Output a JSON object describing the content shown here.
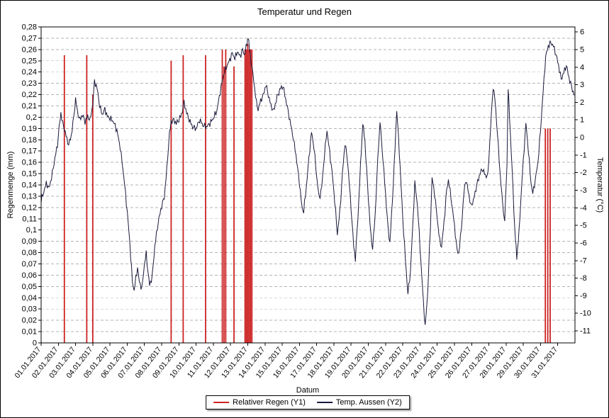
{
  "title": "Temperatur und Regen",
  "axes": {
    "y_left_label": "Regenmenge (mm)",
    "y_right_label": "Temperatur (°C)",
    "x_label": "Datum"
  },
  "legend": {
    "items": [
      {
        "label": "Relativer Regen (Y1)",
        "color": "#cc2222"
      },
      {
        "label": "Temp. Aussen (Y2)",
        "color": "#1a1a3c"
      }
    ]
  },
  "chart_data": {
    "type": "line",
    "title": "Temperatur und Regen",
    "x_axis": {
      "label": "Datum",
      "ticks": [
        "01.01.2017",
        "02.01.2017",
        "03.01.2017",
        "04.01.2017",
        "05.01.2017",
        "06.01.2017",
        "07.01.2017",
        "08.01.2017",
        "09.01.2017",
        "10.01.2017",
        "11.01.2017",
        "12.01.2017",
        "13.01.2017",
        "14.01.2017",
        "15.01.2017",
        "16.01.2017",
        "17.01.2017",
        "18.01.2017",
        "19.01.2017",
        "20.01.2017",
        "21.01.2017",
        "22.01.2017",
        "23.01.2017",
        "24.01.2017",
        "25.01.2017",
        "26.01.2017",
        "27.01.2017",
        "28.01.2017",
        "29.01.2017",
        "30.01.2017",
        "31.01.2017"
      ]
    },
    "rain_axis": {
      "label": "Regenmenge (mm)",
      "min": 0,
      "max": 0.28,
      "tick_step": 0.01,
      "ticks": [
        "0",
        "0,01",
        "0,02",
        "0,03",
        "0,04",
        "0,05",
        "0,06",
        "0,07",
        "0,08",
        "0,09",
        "0,1",
        "0,11",
        "0,12",
        "0,13",
        "0,14",
        "0,15",
        "0,16",
        "0,17",
        "0,18",
        "0,19",
        "0,2",
        "0,21",
        "0,22",
        "0,23",
        "0,24",
        "0,25",
        "0,26",
        "0,27",
        "0,28"
      ]
    },
    "temp_axis": {
      "label": "Temperatur (°C)",
      "min": -11,
      "max": 6,
      "tick_step": 1,
      "ticks": [
        "6",
        "5",
        "4",
        "3",
        "2",
        "1",
        "0",
        "-1",
        "-2",
        "-3",
        "-4",
        "-5",
        "-6",
        "-7",
        "-8",
        "-9",
        "-10",
        "-11"
      ]
    },
    "colors": {
      "rain": "#cc2222",
      "temperature": "#1a1a3c",
      "grid": "#b3b3b3"
    },
    "grid": "horizontal-dashed",
    "legend_position": "bottom-center",
    "series": [
      {
        "name": "Relativer Regen (Y1)",
        "render": "vertical-lines",
        "unit": "mm",
        "points": [
          [
            2.35,
            0.255
          ],
          [
            3.65,
            0.255
          ],
          [
            4.0,
            0.22
          ],
          [
            8.55,
            0.25
          ],
          [
            9.25,
            0.255
          ],
          [
            10.55,
            0.255
          ],
          [
            11.52,
            0.26
          ],
          [
            11.62,
            0.245
          ],
          [
            11.72,
            0.26
          ],
          [
            12.2,
            0.245
          ],
          [
            12.84,
            0.26
          ],
          [
            12.92,
            0.26
          ],
          [
            13.0,
            0.265
          ],
          [
            13.08,
            0.26
          ],
          [
            13.16,
            0.26
          ],
          [
            13.24,
            0.26
          ],
          [
            30.28,
            0.19
          ],
          [
            30.42,
            0.19
          ],
          [
            30.56,
            0.19
          ]
        ]
      },
      {
        "name": "Temp. Aussen (Y2)",
        "render": "line",
        "unit": "°C",
        "points": [
          [
            1.0,
            -3.6
          ],
          [
            1.15,
            -3.1
          ],
          [
            1.3,
            -2.6
          ],
          [
            1.45,
            -2.9
          ],
          [
            1.6,
            -2.3
          ],
          [
            1.8,
            -1.2
          ],
          [
            1.95,
            -0.4
          ],
          [
            2.05,
            0.6
          ],
          [
            2.15,
            1.4
          ],
          [
            2.25,
            0.8
          ],
          [
            2.4,
            0.3
          ],
          [
            2.5,
            -0.1
          ],
          [
            2.6,
            -0.4
          ],
          [
            2.75,
            0.1
          ],
          [
            2.9,
            1.2
          ],
          [
            3.0,
            2.2
          ],
          [
            3.1,
            1.5
          ],
          [
            3.25,
            1.0
          ],
          [
            3.4,
            1.3
          ],
          [
            3.55,
            0.9
          ],
          [
            3.7,
            1.2
          ],
          [
            3.85,
            1.0
          ],
          [
            4.0,
            1.9
          ],
          [
            4.1,
            3.2
          ],
          [
            4.25,
            2.8
          ],
          [
            4.4,
            1.8
          ],
          [
            4.55,
            1.3
          ],
          [
            4.7,
            1.6
          ],
          [
            4.85,
            1.2
          ],
          [
            5.0,
            1.1
          ],
          [
            5.2,
            0.9
          ],
          [
            5.4,
            0.4
          ],
          [
            5.6,
            -0.6
          ],
          [
            5.8,
            -2.2
          ],
          [
            6.0,
            -4.2
          ],
          [
            6.15,
            -6.0
          ],
          [
            6.3,
            -8.2
          ],
          [
            6.4,
            -8.7
          ],
          [
            6.5,
            -8.0
          ],
          [
            6.6,
            -7.4
          ],
          [
            6.7,
            -8.2
          ],
          [
            6.85,
            -8.6
          ],
          [
            7.0,
            -7.2
          ],
          [
            7.1,
            -6.6
          ],
          [
            7.2,
            -7.6
          ],
          [
            7.3,
            -8.4
          ],
          [
            7.45,
            -7.9
          ],
          [
            7.6,
            -6.2
          ],
          [
            7.8,
            -4.8
          ],
          [
            8.0,
            -3.9
          ],
          [
            8.15,
            -3.4
          ],
          [
            8.3,
            -1.8
          ],
          [
            8.45,
            0.2
          ],
          [
            8.55,
            0.9
          ],
          [
            8.7,
            1.0
          ],
          [
            8.85,
            0.8
          ],
          [
            9.0,
            1.0
          ],
          [
            9.15,
            1.3
          ],
          [
            9.3,
            2.0
          ],
          [
            9.45,
            1.4
          ],
          [
            9.6,
            1.0
          ],
          [
            9.8,
            0.6
          ],
          [
            10.0,
            0.5
          ],
          [
            10.2,
            1.0
          ],
          [
            10.4,
            0.7
          ],
          [
            10.6,
            0.6
          ],
          [
            10.8,
            0.8
          ],
          [
            11.0,
            1.1
          ],
          [
            11.2,
            1.5
          ],
          [
            11.4,
            2.6
          ],
          [
            11.6,
            3.6
          ],
          [
            11.8,
            4.1
          ],
          [
            11.95,
            4.4
          ],
          [
            12.1,
            4.8
          ],
          [
            12.25,
            4.5
          ],
          [
            12.4,
            4.9
          ],
          [
            12.55,
            4.6
          ],
          [
            12.7,
            5.0
          ],
          [
            12.8,
            4.7
          ],
          [
            12.95,
            5.3
          ],
          [
            13.02,
            5.8
          ],
          [
            13.1,
            5.0
          ],
          [
            13.2,
            4.3
          ],
          [
            13.35,
            3.2
          ],
          [
            13.5,
            2.0
          ],
          [
            13.6,
            1.6
          ],
          [
            13.75,
            2.1
          ],
          [
            13.9,
            2.4
          ],
          [
            14.05,
            3.0
          ],
          [
            14.2,
            2.4
          ],
          [
            14.35,
            1.8
          ],
          [
            14.5,
            1.5
          ],
          [
            14.7,
            2.3
          ],
          [
            14.9,
            2.8
          ],
          [
            15.05,
            2.9
          ],
          [
            15.2,
            2.2
          ],
          [
            15.4,
            1.2
          ],
          [
            15.6,
            0.2
          ],
          [
            15.8,
            -1.0
          ],
          [
            16.0,
            -2.6
          ],
          [
            16.15,
            -4.0
          ],
          [
            16.25,
            -4.2
          ],
          [
            16.4,
            -2.8
          ],
          [
            16.55,
            -1.2
          ],
          [
            16.7,
            0.3
          ],
          [
            16.85,
            -0.6
          ],
          [
            17.0,
            -2.2
          ],
          [
            17.15,
            -3.5
          ],
          [
            17.3,
            -2.8
          ],
          [
            17.45,
            -1.0
          ],
          [
            17.6,
            0.4
          ],
          [
            17.75,
            -0.8
          ],
          [
            17.9,
            -2.0
          ],
          [
            18.05,
            -3.6
          ],
          [
            18.2,
            -5.5
          ],
          [
            18.35,
            -4.2
          ],
          [
            18.5,
            -2.0
          ],
          [
            18.65,
            -0.3
          ],
          [
            18.8,
            -1.4
          ],
          [
            19.0,
            -4.0
          ],
          [
            19.15,
            -6.2
          ],
          [
            19.25,
            -6.9
          ],
          [
            19.4,
            -4.5
          ],
          [
            19.55,
            -1.5
          ],
          [
            19.68,
            0.8
          ],
          [
            19.8,
            -0.2
          ],
          [
            20.0,
            -3.4
          ],
          [
            20.15,
            -5.6
          ],
          [
            20.25,
            -6.3
          ],
          [
            20.4,
            -4.4
          ],
          [
            20.55,
            -1.2
          ],
          [
            20.68,
            0.9
          ],
          [
            20.8,
            -0.6
          ],
          [
            21.0,
            -3.2
          ],
          [
            21.15,
            -5.2
          ],
          [
            21.25,
            -6.0
          ],
          [
            21.4,
            -3.6
          ],
          [
            21.55,
            -0.6
          ],
          [
            21.65,
            1.6
          ],
          [
            21.8,
            -0.8
          ],
          [
            22.0,
            -4.6
          ],
          [
            22.2,
            -7.6
          ],
          [
            22.3,
            -8.9
          ],
          [
            22.45,
            -7.6
          ],
          [
            22.6,
            -4.6
          ],
          [
            22.7,
            -2.6
          ],
          [
            22.85,
            -3.8
          ],
          [
            23.0,
            -6.2
          ],
          [
            23.15,
            -8.6
          ],
          [
            23.3,
            -10.8
          ],
          [
            23.45,
            -8.8
          ],
          [
            23.6,
            -5.2
          ],
          [
            23.7,
            -2.3
          ],
          [
            23.85,
            -3.2
          ],
          [
            24.0,
            -4.6
          ],
          [
            24.15,
            -5.9
          ],
          [
            24.25,
            -6.2
          ],
          [
            24.4,
            -4.8
          ],
          [
            24.55,
            -3.0
          ],
          [
            24.65,
            -2.4
          ],
          [
            24.8,
            -3.4
          ],
          [
            25.0,
            -5.0
          ],
          [
            25.15,
            -6.4
          ],
          [
            25.25,
            -6.6
          ],
          [
            25.4,
            -5.2
          ],
          [
            25.55,
            -3.2
          ],
          [
            25.65,
            -2.4
          ],
          [
            25.8,
            -3.0
          ],
          [
            25.95,
            -3.9
          ],
          [
            26.1,
            -3.6
          ],
          [
            26.3,
            -2.7
          ],
          [
            26.5,
            -2.0
          ],
          [
            26.65,
            -1.8
          ],
          [
            26.8,
            -2.2
          ],
          [
            26.95,
            -2.1
          ],
          [
            27.1,
            0.6
          ],
          [
            27.25,
            2.9
          ],
          [
            27.35,
            2.2
          ],
          [
            27.5,
            0.2
          ],
          [
            27.65,
            -2.0
          ],
          [
            27.8,
            -3.8
          ],
          [
            27.92,
            -4.8
          ],
          [
            28.05,
            -1.5
          ],
          [
            28.12,
            2.8
          ],
          [
            28.2,
            1.2
          ],
          [
            28.35,
            -1.8
          ],
          [
            28.5,
            -5.2
          ],
          [
            28.62,
            -6.8
          ],
          [
            28.75,
            -5.4
          ],
          [
            28.9,
            -2.8
          ],
          [
            29.05,
            -0.6
          ],
          [
            29.15,
            0.8
          ],
          [
            29.3,
            -0.8
          ],
          [
            29.45,
            -2.6
          ],
          [
            29.55,
            -3.2
          ],
          [
            29.7,
            -2.4
          ],
          [
            29.85,
            -1.4
          ],
          [
            30.0,
            0.4
          ],
          [
            30.15,
            2.6
          ],
          [
            30.3,
            4.6
          ],
          [
            30.45,
            5.2
          ],
          [
            30.6,
            5.4
          ],
          [
            30.75,
            5.2
          ],
          [
            30.9,
            4.7
          ],
          [
            31.05,
            4.1
          ],
          [
            31.2,
            3.3
          ],
          [
            31.35,
            3.7
          ],
          [
            31.5,
            4.1
          ],
          [
            31.65,
            3.4
          ],
          [
            31.8,
            2.9
          ],
          [
            31.95,
            2.4
          ]
        ]
      }
    ]
  }
}
